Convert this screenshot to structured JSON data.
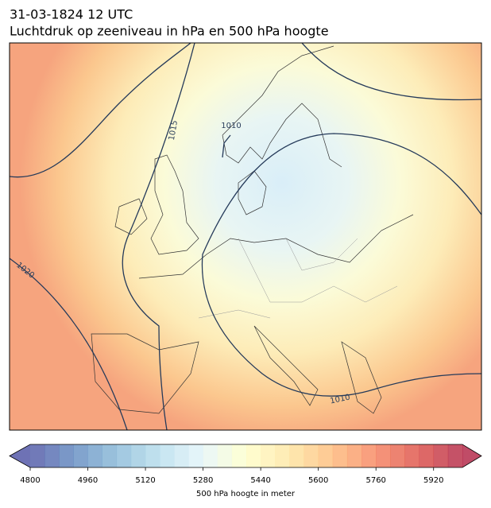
{
  "header": {
    "date": "31-03-1824 12 UTC",
    "title": "Luchtdruk op zeeniveau in hPa en 500 hPa hoogte"
  },
  "contour_labels": [
    "1010",
    "1015",
    "1020",
    "1010"
  ],
  "colorbar": {
    "label": "500 hPa hoogte in meter",
    "lim": [
      4800,
      6000
    ],
    "step": 40,
    "ticks": [
      4800,
      4960,
      5120,
      5280,
      5440,
      5600,
      5760,
      5920
    ],
    "colors": [
      "#313695",
      "#4575b4",
      "#74add1",
      "#abd9e9",
      "#e0f3f8",
      "#ffffbf",
      "#fee090",
      "#fdae61",
      "#f46d43",
      "#d73027",
      "#a50026"
    ],
    "alpha": 0.7
  }
}
